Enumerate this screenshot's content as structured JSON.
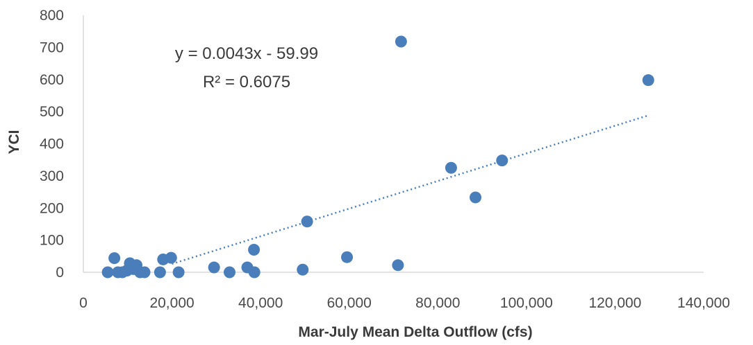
{
  "chart_data": {
    "type": "scatter",
    "title": "",
    "xlabel": "Mar-July Mean Delta Outflow (cfs)",
    "ylabel": "YCI",
    "xlim": [
      0,
      140000
    ],
    "ylim": [
      0,
      800
    ],
    "x_ticks": [
      "0",
      "20,000",
      "40,000",
      "60,000",
      "80,000",
      "100,000",
      "120,000",
      "140,000"
    ],
    "y_ticks": [
      "0",
      "100",
      "200",
      "300",
      "400",
      "500",
      "600",
      "700",
      "800"
    ],
    "grid": false,
    "legend": "none",
    "marker_color": "#4a7ebb",
    "trendline_color": "#4a7ebb",
    "series": [
      {
        "points": [
          {
            "x": 5500,
            "y": 0
          },
          {
            "x": 7000,
            "y": 44
          },
          {
            "x": 7800,
            "y": 0
          },
          {
            "x": 8800,
            "y": 0
          },
          {
            "x": 9800,
            "y": 5
          },
          {
            "x": 10500,
            "y": 28
          },
          {
            "x": 11300,
            "y": 10
          },
          {
            "x": 12000,
            "y": 22
          },
          {
            "x": 12800,
            "y": 0
          },
          {
            "x": 13800,
            "y": 0
          },
          {
            "x": 17300,
            "y": 0
          },
          {
            "x": 18000,
            "y": 40
          },
          {
            "x": 19800,
            "y": 45
          },
          {
            "x": 21500,
            "y": 0
          },
          {
            "x": 29500,
            "y": 15
          },
          {
            "x": 33000,
            "y": 0
          },
          {
            "x": 37000,
            "y": 15
          },
          {
            "x": 38500,
            "y": 70
          },
          {
            "x": 38600,
            "y": 0
          },
          {
            "x": 49500,
            "y": 8
          },
          {
            "x": 50500,
            "y": 158
          },
          {
            "x": 59500,
            "y": 47
          },
          {
            "x": 71000,
            "y": 22
          },
          {
            "x": 71700,
            "y": 718
          },
          {
            "x": 83000,
            "y": 325
          },
          {
            "x": 88500,
            "y": 233
          },
          {
            "x": 94500,
            "y": 348
          },
          {
            "x": 127500,
            "y": 598
          }
        ]
      }
    ],
    "trendline": {
      "type": "linear",
      "slope": 0.0043,
      "intercept": -59.99,
      "x_range": [
        20000,
        127500
      ],
      "equation_label": "y = 0.0043x - 59.99",
      "r2_label": "R² = 0.6075"
    }
  }
}
